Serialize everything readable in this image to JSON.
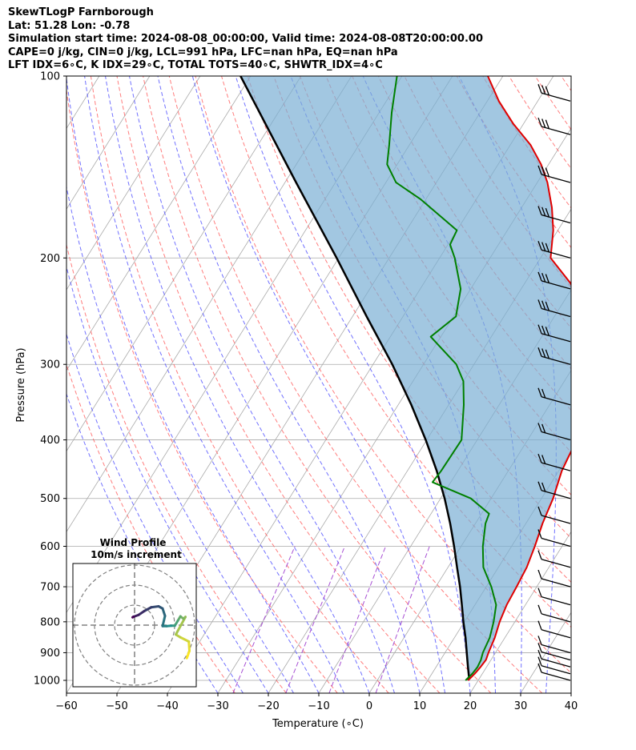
{
  "header": {
    "lines": [
      "SkewTLogP Farnborough",
      "Lat: 51.28   Lon: -0.78",
      "Simulation start time: 2024-08-08_00:00:00, Valid time: 2024-08-08T20:00:00.00",
      "CAPE=0 j/kg, CIN=0 j/kg, LCL=991 hPa, LFC=nan hPa, EQ=nan hPa",
      "LFT IDX=6∘C, K IDX=29∘C, TOTAL TOTS=40∘C, SHWTR_IDX=4∘C"
    ]
  },
  "chart_data": [
    {
      "type": "line",
      "subtype": "skew-t log-p diagram",
      "xlabel": "Temperature (∘C)",
      "ylabel": "Pressure (hPa)",
      "xlim": [
        -60,
        40
      ],
      "ylim": [
        1050,
        100
      ],
      "y_scale": "log",
      "x_ticks": [
        "−60",
        "−50",
        "−40",
        "−30",
        "−20",
        "−10",
        "0",
        "10",
        "20",
        "30",
        "40"
      ],
      "x_tick_values": [
        -60,
        -50,
        -40,
        -30,
        -20,
        -10,
        0,
        10,
        20,
        30,
        40
      ],
      "y_ticks": [
        "100",
        "200",
        "300",
        "400",
        "500",
        "600",
        "700",
        "800",
        "900",
        "1000"
      ],
      "y_tick_values": [
        100,
        200,
        300,
        400,
        500,
        600,
        700,
        800,
        900,
        1000
      ],
      "grid": true,
      "colors": {
        "temperature": "#e00000",
        "dewpoint": "#008000",
        "parcel": "#000000",
        "cape_fill": "#7bafd4",
        "dry_adiabat": "#ff5c5c",
        "moist_adiabat": "#4d4dff",
        "mixing_ratio": "#9932cc",
        "isotherm": "#a9a9a9"
      },
      "series": [
        {
          "role": "temperature",
          "points": [
            [
              1000,
              18.0
            ],
            [
              975,
              18.5
            ],
            [
              950,
              18.8
            ],
            [
              925,
              19.0
            ],
            [
              900,
              18.6
            ],
            [
              850,
              18.0
            ],
            [
              800,
              17.0
            ],
            [
              750,
              16.3
            ],
            [
              700,
              16.0
            ],
            [
              650,
              15.6
            ],
            [
              600,
              14.6
            ],
            [
              550,
              13.3
            ],
            [
              500,
              12.3
            ],
            [
              450,
              10.6
            ],
            [
              400,
              9.7
            ],
            [
              350,
              7.4
            ],
            [
              300,
              4.0
            ],
            [
              270,
              -0.2
            ],
            [
              250,
              -3.6
            ],
            [
              220,
              -11.0
            ],
            [
              200,
              -18.0
            ],
            [
              180,
              -20.9
            ],
            [
              165,
              -24.0
            ],
            [
              150,
              -28.0
            ],
            [
              140,
              -31.5
            ],
            [
              130,
              -36.0
            ],
            [
              120,
              -42.0
            ],
            [
              110,
              -47.7
            ],
            [
              100,
              -53.0
            ]
          ]
        },
        {
          "role": "dewpoint",
          "points": [
            [
              1000,
              17.5
            ],
            [
              975,
              18.0
            ],
            [
              950,
              18.2
            ],
            [
              925,
              18.0
            ],
            [
              900,
              17.5
            ],
            [
              850,
              17.0
            ],
            [
              800,
              15.8
            ],
            [
              750,
              14.2
            ],
            [
              700,
              11.0
            ],
            [
              650,
              7.0
            ],
            [
              600,
              4.3
            ],
            [
              550,
              2.0
            ],
            [
              530,
              1.5
            ],
            [
              500,
              -4.0
            ],
            [
              470,
              -13.6
            ],
            [
              450,
              -13.3
            ],
            [
              400,
              -13.1
            ],
            [
              350,
              -17.0
            ],
            [
              320,
              -20.0
            ],
            [
              300,
              -23.5
            ],
            [
              270,
              -32.0
            ],
            [
              250,
              -29.5
            ],
            [
              225,
              -32.0
            ],
            [
              200,
              -37.0
            ],
            [
              190,
              -39.6
            ],
            [
              180,
              -40.0
            ],
            [
              160,
              -51.0
            ],
            [
              150,
              -58.0
            ],
            [
              140,
              -62.0
            ],
            [
              130,
              -64.0
            ],
            [
              115,
              -67.5
            ],
            [
              100,
              -71.0
            ]
          ]
        },
        {
          "role": "parcel",
          "points": [
            [
              1000,
              18.0
            ],
            [
              991,
              17.9
            ],
            [
              950,
              16.3
            ],
            [
              900,
              14.3
            ],
            [
              850,
              12.2
            ],
            [
              800,
              9.8
            ],
            [
              750,
              7.4
            ],
            [
              700,
              4.8
            ],
            [
              650,
              1.8
            ],
            [
              600,
              -1.4
            ],
            [
              550,
              -5.0
            ],
            [
              500,
              -9.2
            ],
            [
              450,
              -14.2
            ],
            [
              400,
              -20.2
            ],
            [
              350,
              -27.4
            ],
            [
              300,
              -36.2
            ],
            [
              250,
              -47.2
            ],
            [
              200,
              -60.4
            ],
            [
              150,
              -77.8
            ],
            [
              100,
              -102.0
            ]
          ]
        }
      ],
      "wind_barbs": [
        {
          "p": 1000,
          "barbs": 1
        },
        {
          "p": 975,
          "barbs": 1
        },
        {
          "p": 950,
          "barbs": 1
        },
        {
          "p": 925,
          "barbs": 1
        },
        {
          "p": 900,
          "barbs": 1
        },
        {
          "p": 850,
          "barbs": 1
        },
        {
          "p": 800,
          "barbs": 1
        },
        {
          "p": 750,
          "barbs": 1
        },
        {
          "p": 700,
          "barbs": 1
        },
        {
          "p": 650,
          "barbs": 1
        },
        {
          "p": 600,
          "barbs": 1
        },
        {
          "p": 550,
          "barbs": 1
        },
        {
          "p": 500,
          "barbs": 2
        },
        {
          "p": 450,
          "barbs": 2
        },
        {
          "p": 400,
          "barbs": 2
        },
        {
          "p": 350,
          "barbs": 2
        },
        {
          "p": 300,
          "barbs": 3
        },
        {
          "p": 275,
          "barbs": 3
        },
        {
          "p": 250,
          "barbs": 3
        },
        {
          "p": 225,
          "barbs": 3
        },
        {
          "p": 200,
          "barbs": 3
        },
        {
          "p": 175,
          "barbs": 3
        },
        {
          "p": 150,
          "barbs": 3
        },
        {
          "p": 125,
          "barbs": 3
        },
        {
          "p": 110,
          "barbs": 3
        }
      ]
    },
    {
      "type": "scatter",
      "subtype": "hodograph",
      "title": "Wind Profile",
      "subtitle": "10m/s increment",
      "rings": [
        10,
        20,
        30
      ],
      "grid": true,
      "colormap": [
        "#fde725",
        "#21918c",
        "#440154"
      ],
      "points": [
        [
          26.1,
          -16.5
        ],
        [
          27.4,
          -12.9
        ],
        [
          27.1,
          -8.2
        ],
        [
          22.7,
          -6.0
        ],
        [
          20.6,
          -4.7
        ],
        [
          25.4,
          4.1
        ],
        [
          24.4,
          3.2
        ],
        [
          22.9,
          4.4
        ],
        [
          21.6,
          2.2
        ],
        [
          20.1,
          -0.3
        ],
        [
          18.3,
          -0.3
        ],
        [
          16.0,
          -0.5
        ],
        [
          14.0,
          -0.5
        ],
        [
          15.2,
          4.6
        ],
        [
          14.0,
          8.3
        ],
        [
          12.0,
          9.4
        ],
        [
          8.3,
          8.9
        ],
        [
          4.8,
          7.0
        ],
        [
          2.0,
          5.1
        ],
        [
          -0.7,
          4.1
        ],
        [
          -0.5,
          4.2
        ],
        [
          -1.0,
          3.9
        ]
      ]
    }
  ]
}
